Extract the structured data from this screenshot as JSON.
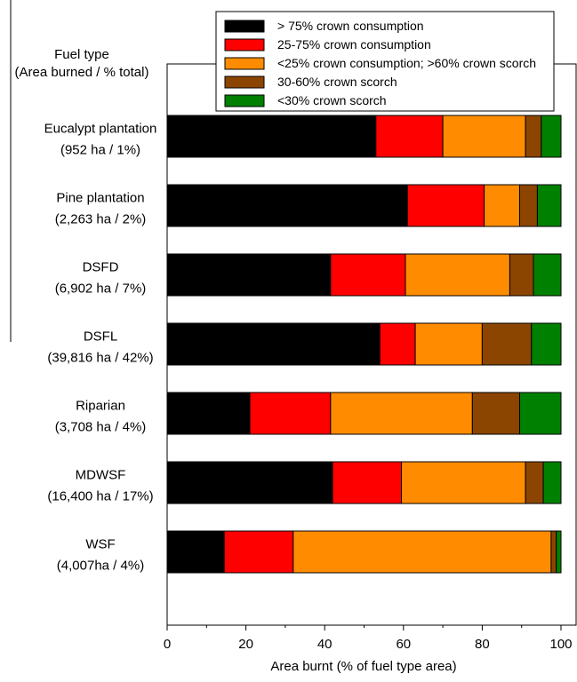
{
  "chart_data": {
    "type": "bar",
    "orientation": "horizontal",
    "stacked": true,
    "ylabel_lines": [
      "Fuel type",
      "(Area burned / % total)"
    ],
    "xlabel": "Area burnt (% of fuel type area)",
    "xlim": [
      0,
      100
    ],
    "xticks": [
      0,
      20,
      40,
      60,
      80,
      100
    ],
    "grid": false,
    "legend_position": "top-right",
    "categories": [
      {
        "name": "Eucalypt plantation",
        "sub": "(952 ha / 1%)"
      },
      {
        "name": "Pine plantation",
        "sub": "(2,263 ha / 2%)"
      },
      {
        "name": "DSFD",
        "sub": "(6,902 ha / 7%)"
      },
      {
        "name": "DSFL",
        "sub": "(39,816 ha / 42%)"
      },
      {
        "name": "Riparian",
        "sub": "(3,708 ha / 4%)"
      },
      {
        "name": "MDWSF",
        "sub": "(16,400 ha / 17%)"
      },
      {
        "name": "WSF",
        "sub": "(4,007ha / 4%)"
      }
    ],
    "series": [
      {
        "name": "> 75% crown consumption",
        "color": "#000000",
        "values": [
          53.0,
          61.0,
          41.5,
          54.0,
          21.0,
          42.0,
          14.5
        ]
      },
      {
        "name": "25-75% crown consumption",
        "color": "#ff0000",
        "values": [
          17.0,
          19.5,
          19.0,
          9.0,
          20.5,
          17.5,
          17.5
        ]
      },
      {
        "name": "<25% crown consumption; >60% crown scorch",
        "color": "#ff8c00",
        "values": [
          21.0,
          9.0,
          26.5,
          17.0,
          36.0,
          31.5,
          65.5
        ]
      },
      {
        "name": "30-60% crown scorch",
        "color": "#8b4500",
        "values": [
          4.0,
          4.5,
          6.0,
          12.5,
          12.0,
          4.5,
          1.3
        ]
      },
      {
        "name": "<30% crown scorch",
        "color": "#008000",
        "values": [
          5.0,
          6.0,
          7.0,
          7.5,
          10.5,
          4.5,
          1.2
        ]
      }
    ]
  }
}
